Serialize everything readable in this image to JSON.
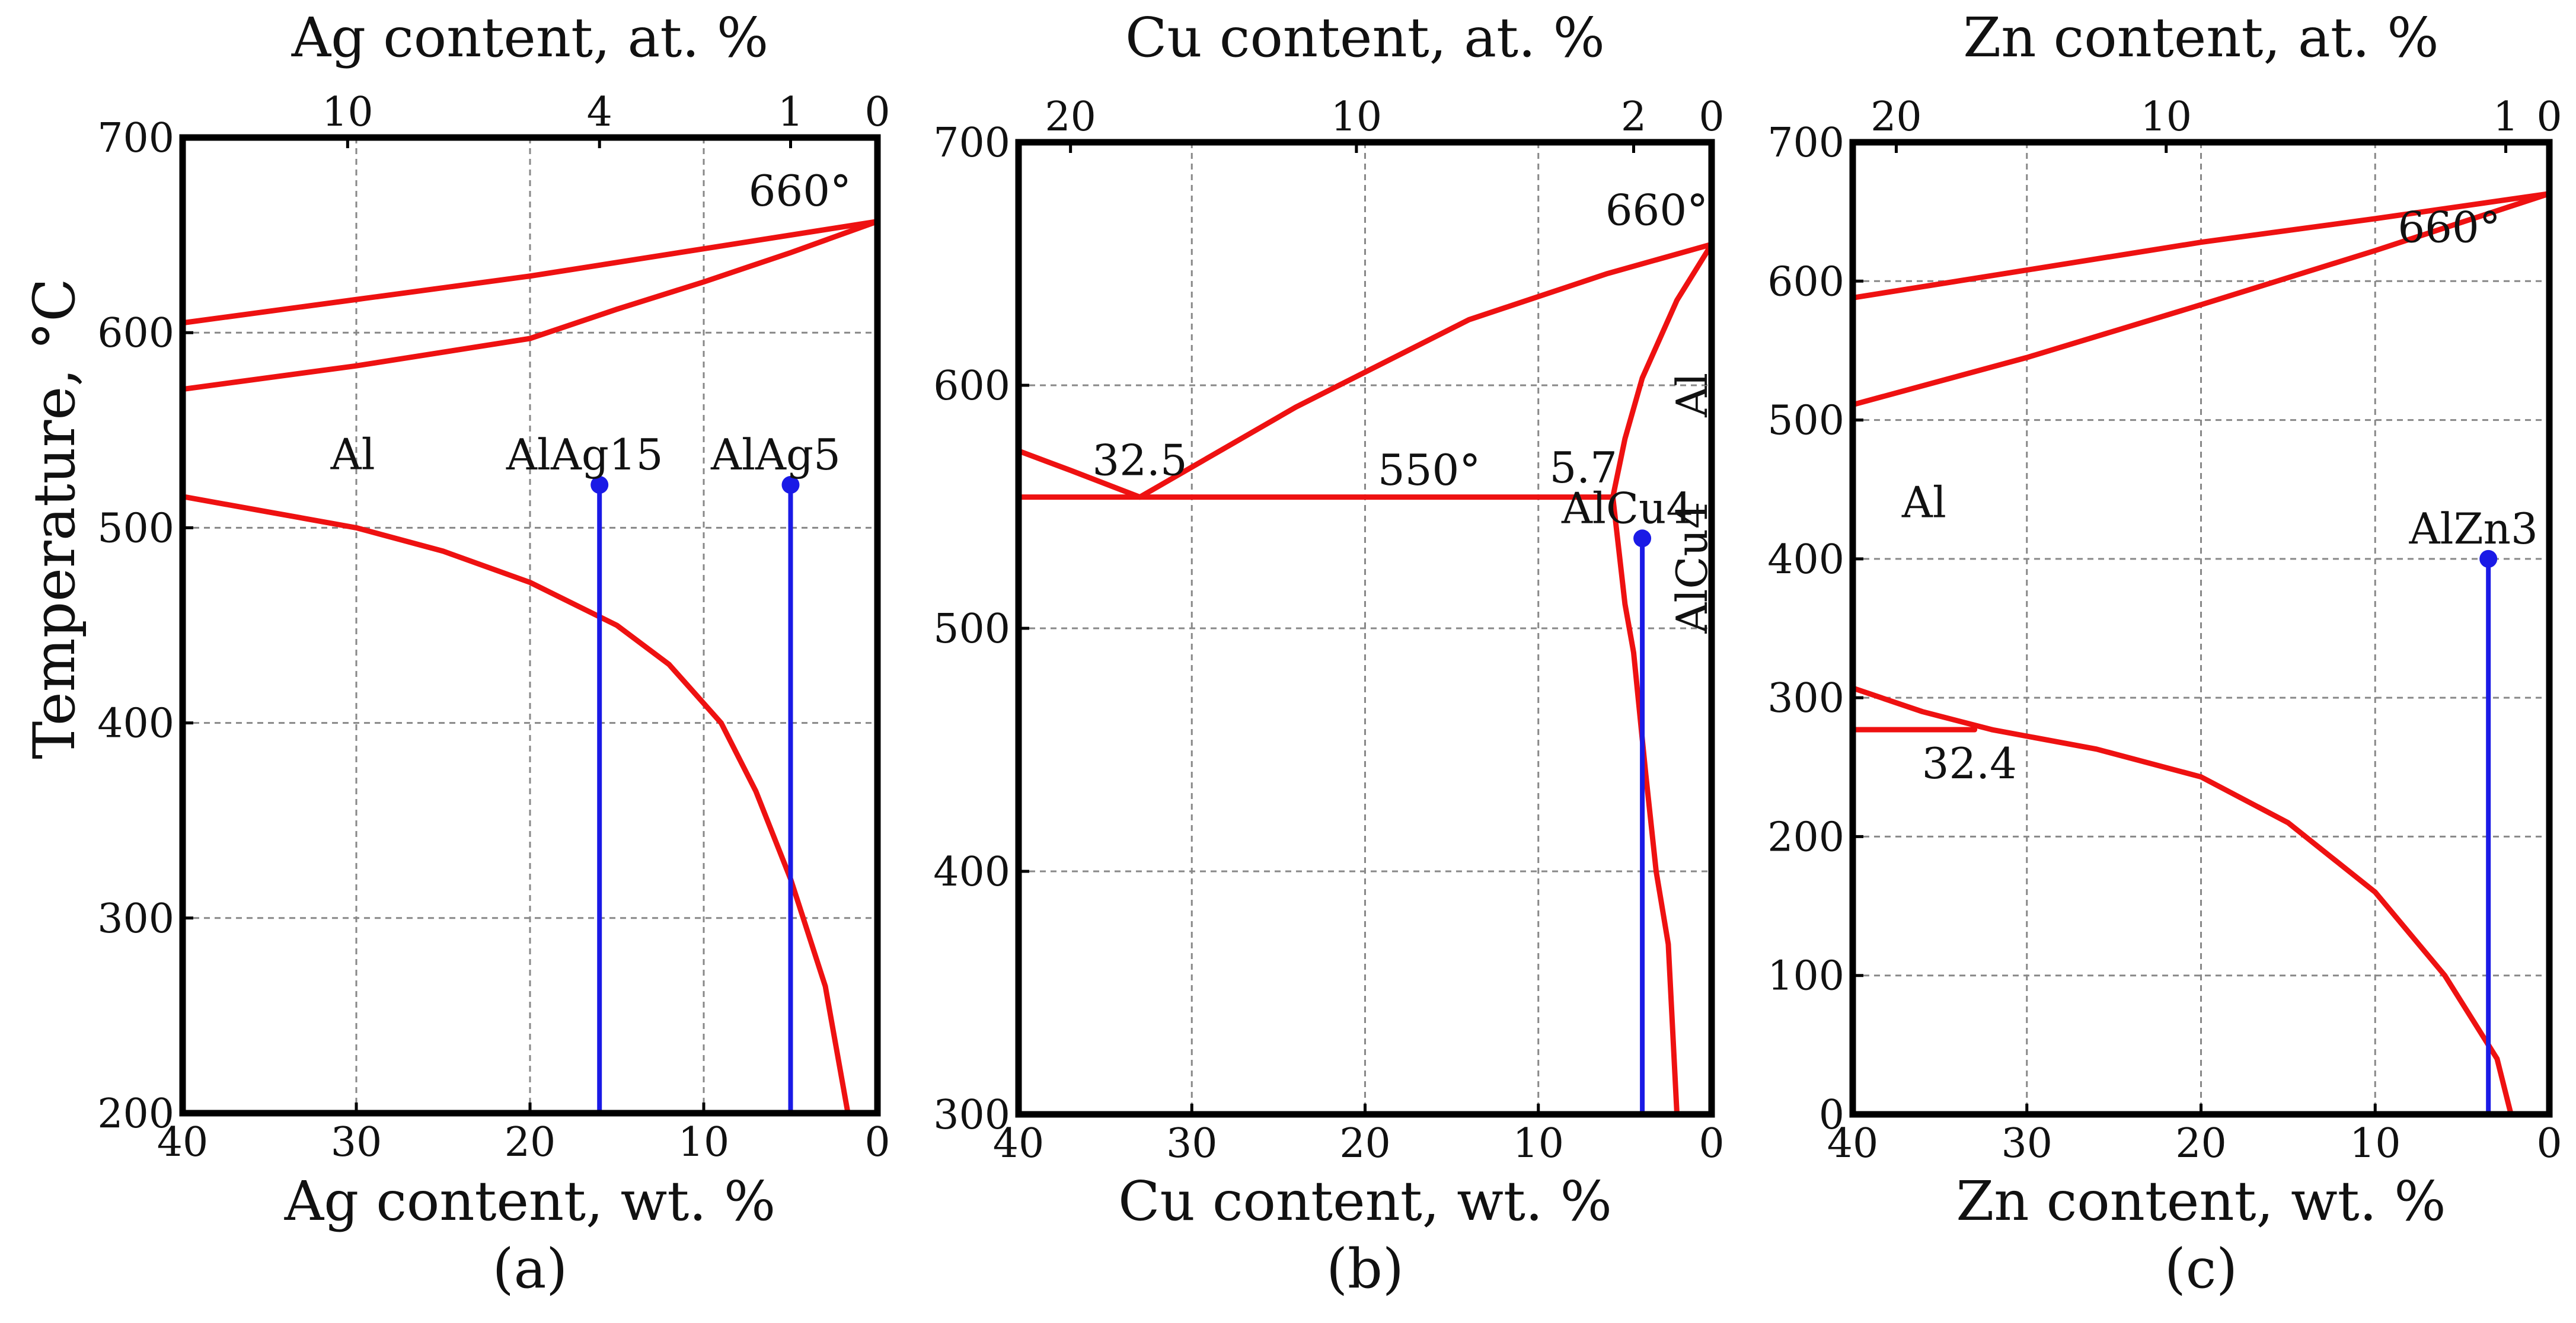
{
  "y_axis_label": "Temperature, °C",
  "colors": {
    "curve": "#ee1111",
    "composition": "#1a1ae6",
    "grid": "#888888",
    "axis": "#000000"
  },
  "chart_data": [
    {
      "type": "line",
      "panel_label": "(a)",
      "title_top": "Ag content, at. %",
      "xlabel": "Ag content, wt. %",
      "ylabel": "Temperature, °C",
      "xlim": [
        40,
        0
      ],
      "ylim": [
        200,
        700
      ],
      "x_ticks": [
        40,
        30,
        20,
        10,
        0
      ],
      "y_ticks": [
        200,
        300,
        400,
        500,
        600,
        700
      ],
      "top_ticks": [
        {
          "label": "10",
          "x": 30.5
        },
        {
          "label": "4",
          "x": 16
        },
        {
          "label": "1",
          "x": 5
        },
        {
          "label": "0",
          "x": 0
        }
      ],
      "grid": true,
      "curves": [
        {
          "name": "liquidus",
          "points": [
            [
              40,
              605
            ],
            [
              30,
              617
            ],
            [
              20,
              629
            ],
            [
              10,
              643
            ],
            [
              0,
              657
            ]
          ]
        },
        {
          "name": "solidus",
          "points": [
            [
              40,
              571
            ],
            [
              30,
              583
            ],
            [
              20,
              597
            ],
            [
              15,
              612
            ],
            [
              10,
              626
            ],
            [
              5,
              641
            ],
            [
              0,
              657
            ]
          ]
        },
        {
          "name": "solvus",
          "points": [
            [
              40,
              516
            ],
            [
              35,
              508
            ],
            [
              30,
              500
            ],
            [
              25,
              488
            ],
            [
              20,
              472
            ],
            [
              15,
              450
            ],
            [
              12,
              430
            ],
            [
              9,
              400
            ],
            [
              7,
              365
            ],
            [
              5,
              320
            ],
            [
              3,
              265
            ],
            [
              1.7,
              200
            ]
          ]
        }
      ],
      "compositions": [
        {
          "label": "AlAg15",
          "x": 16,
          "top": 522
        },
        {
          "label": "AlAg5",
          "x": 5,
          "top": 522
        }
      ],
      "annotations": [
        {
          "text": "660°",
          "x": 1.5,
          "y": 665,
          "anchor": "end"
        },
        {
          "text": "Al",
          "x": 30.2,
          "y": 530,
          "anchor": "middle"
        }
      ]
    },
    {
      "type": "line",
      "panel_label": "(b)",
      "title_top": "Cu content, at. %",
      "xlabel": "Cu content, wt. %",
      "ylabel": "Temperature, °C",
      "xlim": [
        40,
        0
      ],
      "ylim": [
        300,
        700
      ],
      "x_ticks": [
        40,
        30,
        20,
        10,
        0
      ],
      "y_ticks": [
        300,
        400,
        500,
        600,
        700
      ],
      "top_ticks": [
        {
          "label": "20",
          "x": 37
        },
        {
          "label": "10",
          "x": 20.5
        },
        {
          "label": "2",
          "x": 4.5
        },
        {
          "label": "0",
          "x": 0
        }
      ],
      "grid": true,
      "curves": [
        {
          "name": "eutectic-line",
          "points": [
            [
              40,
              554
            ],
            [
              5.7,
              554
            ]
          ]
        },
        {
          "name": "hypereutectic-liquidus",
          "points": [
            [
              40,
              573
            ],
            [
              37,
              565
            ],
            [
              33,
              554
            ]
          ]
        },
        {
          "name": "liquidus",
          "points": [
            [
              33,
              554
            ],
            [
              24,
              591
            ],
            [
              14,
              627
            ],
            [
              6,
              646
            ],
            [
              0,
              658
            ]
          ]
        },
        {
          "name": "solidus",
          "points": [
            [
              5.7,
              554
            ],
            [
              5,
              578
            ],
            [
              4,
              603
            ],
            [
              2,
              635
            ],
            [
              0,
              658
            ]
          ]
        },
        {
          "name": "solvus",
          "points": [
            [
              5.7,
              554
            ],
            [
              5,
              510
            ],
            [
              4.5,
              490
            ],
            [
              3.8,
              440
            ],
            [
              3.2,
              400
            ],
            [
              2.5,
              370
            ],
            [
              2,
              300
            ]
          ]
        }
      ],
      "compositions": [
        {
          "label": "AlCu4",
          "x": 4,
          "top": 537
        }
      ],
      "annotations": [
        {
          "text": "660°",
          "x": 0.2,
          "y": 666,
          "anchor": "end"
        },
        {
          "text": "32.5",
          "x": 33,
          "y": 563,
          "anchor": "middle"
        },
        {
          "text": "550°",
          "x": 16.3,
          "y": 559,
          "anchor": "middle"
        },
        {
          "text": "5.7",
          "x": 7.4,
          "y": 560,
          "anchor": "middle"
        },
        {
          "text": "Al",
          "x": 1.1,
          "y": 596,
          "anchor": "middle",
          "rotate": -90
        },
        {
          "text": "AlCu4",
          "x": 1.1,
          "y": 525,
          "anchor": "middle",
          "rotate": -90
        }
      ]
    },
    {
      "type": "line",
      "panel_label": "(c)",
      "title_top": "Zn content, at. %",
      "xlabel": "Zn content, wt. %",
      "ylabel": "Temperature, °C",
      "xlim": [
        40,
        0
      ],
      "ylim": [
        0,
        700
      ],
      "x_ticks": [
        40,
        30,
        20,
        10,
        0
      ],
      "y_ticks": [
        0,
        100,
        200,
        300,
        400,
        500,
        600,
        700
      ],
      "top_ticks": [
        {
          "label": "20",
          "x": 37.5
        },
        {
          "label": "10",
          "x": 22
        },
        {
          "label": "1",
          "x": 2.5
        },
        {
          "label": "0",
          "x": 0
        }
      ],
      "grid": true,
      "curves": [
        {
          "name": "liquidus",
          "points": [
            [
              40,
              588
            ],
            [
              30,
              608
            ],
            [
              20,
              628
            ],
            [
              10,
              645
            ],
            [
              0,
              663
            ]
          ]
        },
        {
          "name": "solidus",
          "points": [
            [
              40,
              511
            ],
            [
              30,
              545
            ],
            [
              20,
              583
            ],
            [
              10,
              622
            ],
            [
              0,
              663
            ]
          ]
        },
        {
          "name": "eutectoid-line",
          "points": [
            [
              40,
              277
            ],
            [
              33,
              277
            ]
          ]
        },
        {
          "name": "upper-solvus",
          "points": [
            [
              40,
              307
            ],
            [
              36,
              290
            ],
            [
              32,
              277
            ]
          ]
        },
        {
          "name": "solvus",
          "points": [
            [
              32,
              277
            ],
            [
              26,
              263
            ],
            [
              20,
              243
            ],
            [
              15,
              210
            ],
            [
              10,
              160
            ],
            [
              6,
              100
            ],
            [
              3,
              40
            ],
            [
              2.2,
              0
            ]
          ]
        }
      ],
      "compositions": [
        {
          "label": "AlZn3",
          "x": 3.5,
          "top": 400
        }
      ],
      "annotations": [
        {
          "text": "660°",
          "x": 2.8,
          "y": 628,
          "anchor": "end"
        },
        {
          "text": "Al",
          "x": 35.9,
          "y": 430,
          "anchor": "middle"
        },
        {
          "text": "32.4",
          "x": 33.3,
          "y": 242,
          "anchor": "middle"
        }
      ]
    }
  ]
}
